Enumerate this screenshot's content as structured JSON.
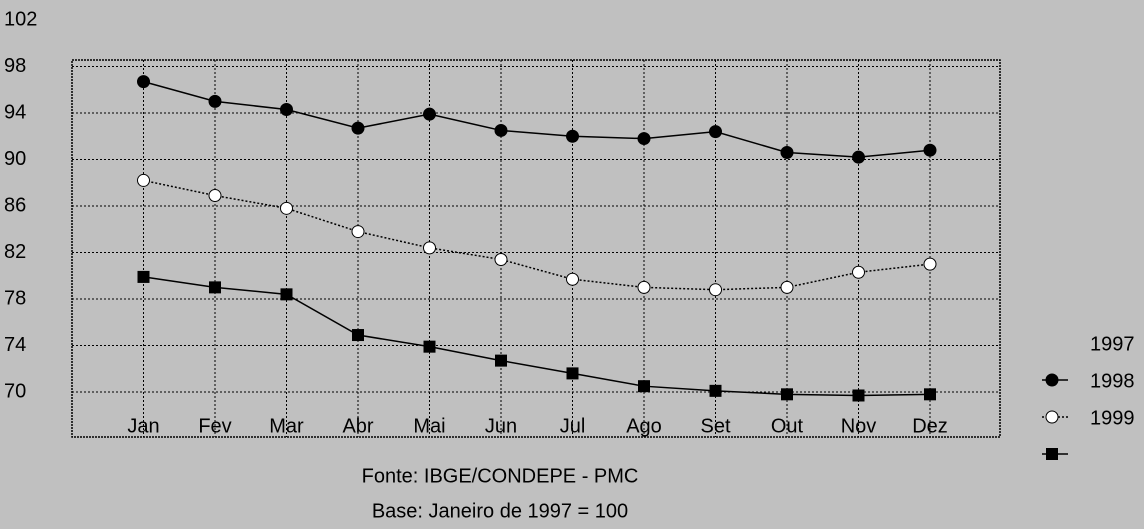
{
  "chart_data": {
    "type": "line",
    "categories": [
      "Jan",
      "Fev",
      "Mar",
      "Abr",
      "Mai",
      "Jun",
      "Jul",
      "Ago",
      "Set",
      "Out",
      "Nov",
      "Dez"
    ],
    "series": [
      {
        "name": "1997",
        "color": "#000000",
        "marker": "filled-circle",
        "dash": "solid",
        "values": [
          96.7,
          95.0,
          94.3,
          92.7,
          93.9,
          92.5,
          92.0,
          91.8,
          92.4,
          90.6,
          90.2,
          90.8
        ]
      },
      {
        "name": "1998",
        "color": "#000000",
        "marker": "open-circle",
        "dash": "dotted",
        "values": [
          88.2,
          86.9,
          85.8,
          83.8,
          82.4,
          81.4,
          79.7,
          79.0,
          78.8,
          79.0,
          80.3,
          81.0
        ]
      },
      {
        "name": "1999",
        "color": "#000000",
        "marker": "square",
        "dash": "solid",
        "values": [
          79.9,
          79.0,
          78.4,
          74.9,
          73.9,
          72.7,
          71.6,
          70.5,
          70.1,
          69.8,
          69.7,
          69.8
        ]
      }
    ],
    "ylim": [
      66,
      102
    ],
    "yticks": [
      70,
      74,
      78,
      82,
      86,
      90,
      94,
      98,
      102
    ],
    "grid": true,
    "legend": "right",
    "notes": [
      "Fonte: IBGE/CONDEPE - PMC",
      "Base: Janeiro de 1997 = 100"
    ]
  }
}
